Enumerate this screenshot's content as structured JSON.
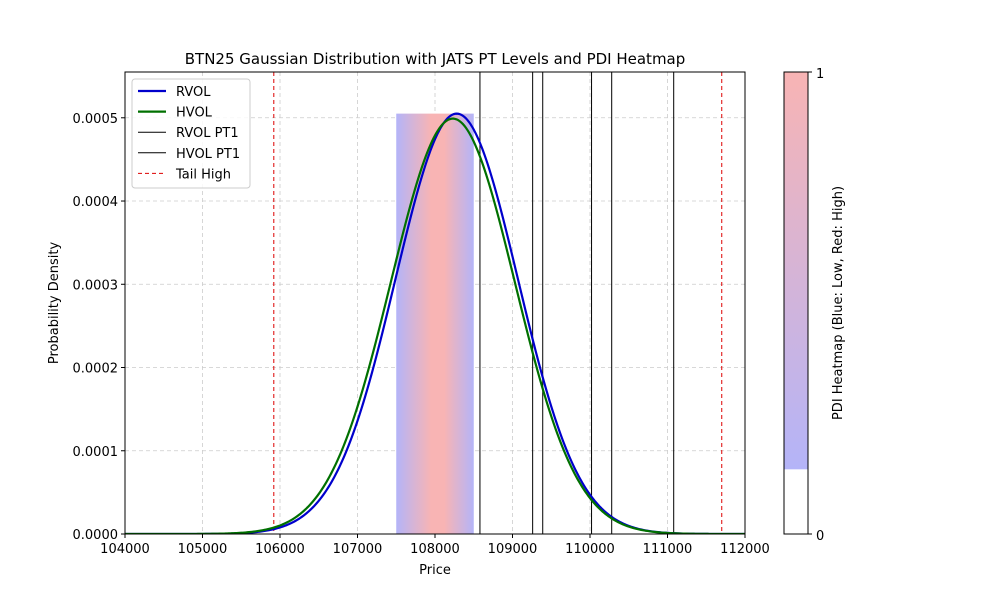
{
  "chart_data": {
    "type": "line",
    "title": "BTN25 Gaussian Distribution with JATS PT Levels and PDI Heatmap",
    "xlabel": "Price",
    "ylabel": "Probability Density",
    "xlim": [
      104000,
      112000
    ],
    "ylim": [
      0,
      0.000555
    ],
    "xticks": [
      104000,
      105000,
      106000,
      107000,
      108000,
      109000,
      110000,
      111000,
      112000
    ],
    "xtick_labels": [
      "104000",
      "105000",
      "106000",
      "107000",
      "108000",
      "109000",
      "110000",
      "111000",
      "112000"
    ],
    "yticks": [
      0,
      0.0001,
      0.0002,
      0.0003,
      0.0004,
      0.0005
    ],
    "ytick_labels": [
      "0.0000",
      "0.0001",
      "0.0002",
      "0.0003",
      "0.0004",
      "0.0005"
    ],
    "grid": true,
    "legend_position": "top-left",
    "series": [
      {
        "name": "RVOL",
        "color": "#0000cc",
        "style": "solid",
        "distribution": "gaussian",
        "mean": 108280,
        "std": 790,
        "peak": 0.000505
      },
      {
        "name": "HVOL",
        "color": "#007000",
        "style": "solid",
        "distribution": "gaussian",
        "mean": 108230,
        "std": 800,
        "peak": 0.000499
      }
    ],
    "vertical_lines": [
      {
        "x": 105920,
        "color": "#dd0000",
        "style": "dashed"
      },
      {
        "x": 108580,
        "color": "#000000",
        "style": "solid"
      },
      {
        "x": 109260,
        "color": "#000000",
        "style": "solid"
      },
      {
        "x": 109390,
        "color": "#000000",
        "style": "solid"
      },
      {
        "x": 110020,
        "color": "#000000",
        "style": "solid"
      },
      {
        "x": 110280,
        "color": "#000000",
        "style": "solid"
      },
      {
        "x": 111080,
        "color": "#000000",
        "style": "solid"
      },
      {
        "x": 111700,
        "color": "#dd0000",
        "style": "dashed"
      }
    ],
    "legend": [
      {
        "label": "RVOL",
        "color": "#0000cc",
        "style": "solid-thick"
      },
      {
        "label": "HVOL",
        "color": "#007000",
        "style": "solid-thick"
      },
      {
        "label": "RVOL PT1",
        "color": "#000000",
        "style": "solid"
      },
      {
        "label": "HVOL PT1",
        "color": "#000000",
        "style": "solid"
      },
      {
        "label": "Tail High",
        "color": "#dd0000",
        "style": "dashed"
      }
    ],
    "heatmap_band": {
      "x_range": [
        107500,
        108500
      ],
      "y_top": 0.000505,
      "colors": {
        "low": "#b4b4f8",
        "high": "#f8b4b4"
      }
    },
    "colorbar": {
      "label": "PDI Heatmap (Blue: Low, Red: High)",
      "range": [
        0,
        1
      ],
      "tick_labels": [
        "0",
        "1"
      ],
      "filled_from": 0.14,
      "colors": {
        "low": "#b4b4f8",
        "high": "#f8b4b4"
      }
    }
  }
}
